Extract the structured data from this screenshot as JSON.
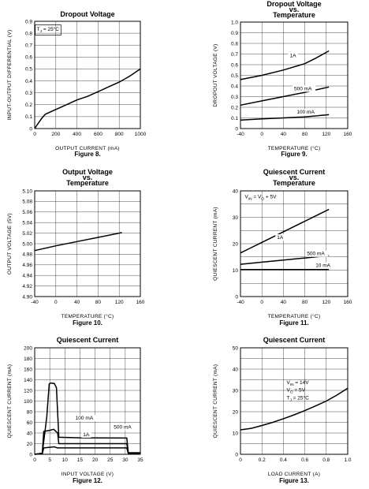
{
  "chart_data": [
    {
      "type": "line",
      "title": "Dropout Voltage",
      "figure_label": "Figure 8.",
      "xlabel": "OUTPUT CURRENT (mA)",
      "ylabel": "INPUT-OUTPUT DIFFERENTIAL (V)",
      "xlim": [
        0,
        1000
      ],
      "ylim": [
        0,
        0.9
      ],
      "xticks": [
        0,
        200,
        400,
        600,
        800,
        1000
      ],
      "yticks": [
        0,
        0.1,
        0.2,
        0.3,
        0.4,
        0.5,
        0.6,
        0.7,
        0.8,
        0.9
      ],
      "xtick_labels": [
        "0",
        "200",
        "400",
        "600",
        "800",
        "1000"
      ],
      "ytick_labels": [
        "0",
        "0.1",
        "0.2",
        "0.3",
        "0.4",
        "0.5",
        "0.6",
        "0.7",
        "0.8",
        "0.9"
      ],
      "grid": true,
      "annotations": [
        {
          "text": "T",
          "sub": "J",
          "rest": " = 25°C",
          "x": 20,
          "y": 0.82,
          "box": true
        }
      ],
      "series": [
        {
          "label": "",
          "x": [
            0,
            30,
            70,
            100,
            150,
            200,
            300,
            400,
            500,
            600,
            700,
            800,
            900,
            1000
          ],
          "y": [
            0,
            0.04,
            0.09,
            0.12,
            0.14,
            0.16,
            0.2,
            0.24,
            0.27,
            0.31,
            0.35,
            0.39,
            0.44,
            0.5
          ]
        }
      ]
    },
    {
      "type": "line",
      "title": "Dropout Voltage",
      "title2": "vs.",
      "title3": "Temperature",
      "figure_label": "Figure 9.",
      "xlabel": "TEMPERATURE (°C)",
      "ylabel": "DROPOUT VOLTAGE (V)",
      "xlim": [
        -40,
        160
      ],
      "ylim": [
        0,
        1.0
      ],
      "xticks": [
        -40,
        0,
        40,
        80,
        120,
        160
      ],
      "yticks": [
        0,
        0.1,
        0.2,
        0.3,
        0.4,
        0.5,
        0.6,
        0.7,
        0.8,
        0.9,
        1.0
      ],
      "xtick_labels": [
        "-40",
        "0",
        "40",
        "80",
        "120",
        "160"
      ],
      "ytick_labels": [
        "0",
        "0.1",
        "0.2",
        "0.3",
        "0.4",
        "0.5",
        "0.6",
        "0.7",
        "0.8",
        "0.9",
        "1.0"
      ],
      "grid": true,
      "series": [
        {
          "label": "1A",
          "x": [
            -40,
            0,
            40,
            80,
            100,
            125
          ],
          "y": [
            0.46,
            0.5,
            0.55,
            0.61,
            0.66,
            0.73
          ],
          "label_at": [
            52,
            0.67
          ]
        },
        {
          "label": "500 mA",
          "x": [
            -40,
            0,
            40,
            80,
            125
          ],
          "y": [
            0.22,
            0.26,
            0.3,
            0.34,
            0.39
          ],
          "label_at": [
            60,
            0.36
          ]
        },
        {
          "label": "100 mA",
          "x": [
            -40,
            0,
            40,
            80,
            125
          ],
          "y": [
            0.08,
            0.09,
            0.1,
            0.11,
            0.13
          ],
          "label_at": [
            65,
            0.14
          ]
        }
      ]
    },
    {
      "type": "line",
      "title": "Output Voltage",
      "title2": "vs.",
      "title3": "Temperature",
      "figure_label": "Figure 10.",
      "xlabel": "TEMPERATURE (°C)",
      "ylabel": "OUTPUT VOLTAGE (5V)",
      "xlim": [
        -40,
        160
      ],
      "ylim": [
        4.9,
        5.1
      ],
      "xticks": [
        -40,
        0,
        40,
        80,
        120,
        160
      ],
      "yticks": [
        4.9,
        4.92,
        4.94,
        4.96,
        4.98,
        5.0,
        5.02,
        5.04,
        5.06,
        5.08,
        5.1
      ],
      "xtick_labels": [
        "-40",
        "0",
        "40",
        "80",
        "120",
        "160"
      ],
      "ytick_labels": [
        "4.90",
        "4.92",
        "4.94",
        "4.96",
        "4.98",
        "5.00",
        "5.02",
        "5.04",
        "5.06",
        "5.08",
        "5.10"
      ],
      "grid": true,
      "series": [
        {
          "label": "",
          "x": [
            -40,
            0,
            40,
            80,
            125
          ],
          "y": [
            4.987,
            4.996,
            5.004,
            5.012,
            5.021
          ]
        }
      ]
    },
    {
      "type": "line",
      "title": "Quiescent Current",
      "title2": "vs.",
      "title3": "Temperature",
      "figure_label": "Figure 11.",
      "xlabel": "TEMPERATURE (°C)",
      "ylabel": "QUIESCENT CURRENT (mA)",
      "xlim": [
        -40,
        160
      ],
      "ylim": [
        0,
        40
      ],
      "xticks": [
        -40,
        0,
        40,
        80,
        120,
        160
      ],
      "yticks": [
        0,
        10,
        20,
        30,
        40
      ],
      "xtick_labels": [
        "-40",
        "0",
        "40",
        "80",
        "120",
        "160"
      ],
      "ytick_labels": [
        "0",
        "10",
        "20",
        "30",
        "40"
      ],
      "minor_y": 5,
      "grid": true,
      "annotations": [
        {
          "text": "V",
          "sub": "IN",
          "rest": " = V",
          "sub2": "O",
          "rest2": " + 5V",
          "x": -32,
          "y": 37.2,
          "box": false
        }
      ],
      "series": [
        {
          "label": "1A",
          "x": [
            -40,
            -20,
            0,
            40,
            80,
            100,
            125
          ],
          "y": [
            16.5,
            18.5,
            20.5,
            24.5,
            28.5,
            30.5,
            33
          ],
          "label_at": [
            28,
            21.8
          ]
        },
        {
          "label": "500 mA",
          "x": [
            -40,
            0,
            40,
            80,
            125
          ],
          "y": [
            12.2,
            13,
            13.8,
            14.6,
            15.5
          ],
          "label_at": [
            84,
            15.6
          ]
        },
        {
          "label": "10 mA",
          "x": [
            -40,
            0,
            40,
            80,
            125
          ],
          "y": [
            10.2,
            10.2,
            10.2,
            10.2,
            10.2
          ],
          "label_at": [
            100,
            11.2
          ]
        }
      ]
    },
    {
      "type": "line",
      "title": "Quiescent Current",
      "figure_label": "Figure 12.",
      "xlabel": "INPUT VOLTAGE (V)",
      "ylabel": "QUIESCENT CURRENT (mA)",
      "xlim": [
        0,
        35
      ],
      "ylim": [
        0,
        200
      ],
      "xticks": [
        0,
        5,
        10,
        15,
        20,
        25,
        30,
        35
      ],
      "yticks": [
        0,
        20,
        40,
        60,
        80,
        100,
        120,
        140,
        160,
        180,
        200
      ],
      "xtick_labels": [
        "0",
        "5",
        "10",
        "15",
        "20",
        "25",
        "30",
        "35"
      ],
      "ytick_labels": [
        "0",
        "20",
        "40",
        "60",
        "80",
        "100",
        "120",
        "140",
        "160",
        "180",
        "200"
      ],
      "grid": true,
      "series": [
        {
          "label": "1A",
          "x": [
            0,
            2.5,
            4,
            4.8,
            5.2,
            6.5,
            7.2,
            8,
            15,
            30.5,
            31,
            35
          ],
          "y": [
            0,
            2,
            70,
            132,
            134,
            133,
            125,
            32,
            31,
            30.5,
            3,
            3
          ],
          "label_at": [
            16,
            34
          ]
        },
        {
          "label": "500 mA",
          "x": [
            0,
            2.5,
            3,
            5,
            6.3,
            7.6,
            8,
            30.5,
            31,
            35
          ],
          "y": [
            0,
            2,
            43,
            45,
            47,
            40,
            20,
            20,
            2,
            2
          ],
          "label_at": [
            26.2,
            48
          ]
        },
        {
          "label": "100 mA",
          "x": [
            0,
            2.5,
            3,
            6.5,
            7.5,
            30.5,
            31,
            35
          ],
          "y": [
            0,
            1,
            12,
            14,
            12,
            12,
            1.5,
            1.5
          ],
          "label_at": [
            13.5,
            65
          ]
        }
      ]
    },
    {
      "type": "line",
      "title": "Quiescent Current",
      "figure_label": "Figure 13.",
      "xlabel": "LOAD CURRENT (A)",
      "ylabel": "QUIESCENT CURRENT (mA)",
      "xlim": [
        0,
        1.0
      ],
      "ylim": [
        0,
        50
      ],
      "xticks": [
        0,
        0.2,
        0.4,
        0.6,
        0.8,
        1.0
      ],
      "yticks": [
        0,
        10,
        20,
        30,
        40,
        50
      ],
      "xtick_labels": [
        "0",
        "0.2",
        "0.4",
        "0.6",
        "0.8",
        "1.0"
      ],
      "ytick_labels": [
        "0",
        "10",
        "20",
        "30",
        "40",
        "50"
      ],
      "minor_y": 5,
      "grid": true,
      "annotations": [
        {
          "text": "V",
          "sub": "IN",
          "rest": " = 14V",
          "x": 0.43,
          "y": 33,
          "box": false
        },
        {
          "text": "V",
          "sub": "O",
          "rest": " = 5V",
          "x": 0.43,
          "y": 29.4,
          "box": false
        },
        {
          "text": "T",
          "sub": "J",
          "rest": " = 25°C",
          "x": 0.43,
          "y": 25.8,
          "box": false
        }
      ],
      "series": [
        {
          "label": "",
          "x": [
            0,
            0.1,
            0.2,
            0.3,
            0.4,
            0.5,
            0.6,
            0.7,
            0.8,
            0.9,
            1.0
          ],
          "y": [
            11.5,
            12.2,
            13.5,
            15,
            16.7,
            18.5,
            20.5,
            22.7,
            25,
            27.8,
            31
          ]
        }
      ]
    }
  ]
}
